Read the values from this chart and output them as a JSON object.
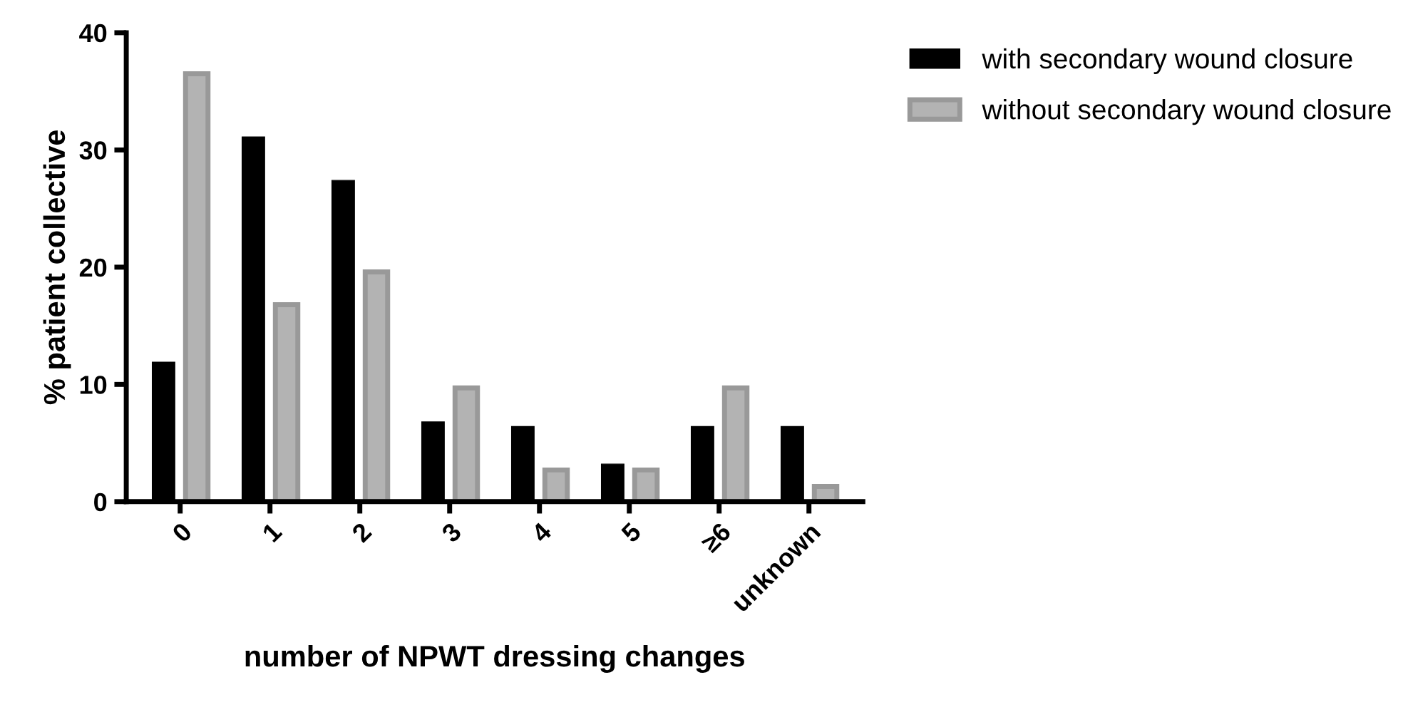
{
  "chart_data": {
    "type": "bar",
    "xlabel": "number of NPWT dressing changes",
    "ylabel": "% patient collective",
    "categories": [
      "0",
      "1",
      "2",
      "3",
      "4",
      "5",
      "≥6",
      "unknown"
    ],
    "series": [
      {
        "name": "with secondary wound closure",
        "color": "#000000",
        "values": [
          11.9,
          31.1,
          27.4,
          6.8,
          6.4,
          3.2,
          6.4,
          6.4
        ]
      },
      {
        "name": "without secondary wound closure",
        "color": "#b3b3b3",
        "values": [
          36.5,
          16.8,
          19.6,
          9.7,
          2.7,
          2.7,
          9.7,
          1.3
        ]
      }
    ],
    "ylim": [
      0,
      40
    ],
    "yticks": [
      0,
      10,
      20,
      30,
      40
    ],
    "grid": false,
    "legend": "top right"
  }
}
